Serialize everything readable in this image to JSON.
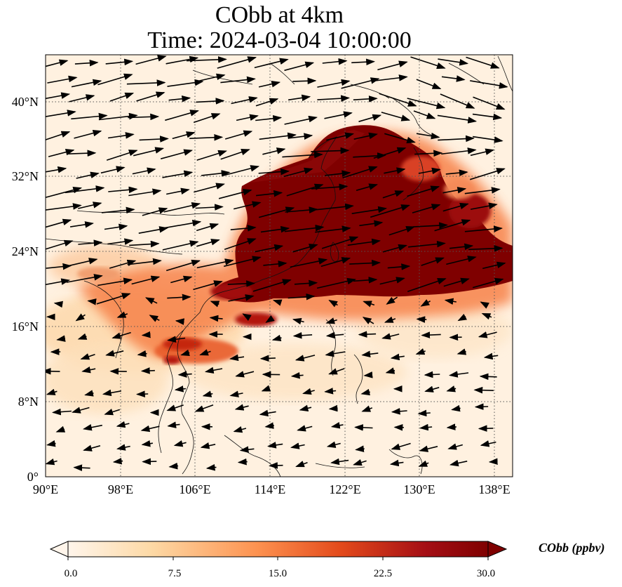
{
  "figure": {
    "title_line1": "CObb at 4km",
    "title_line2": "Time: 2024-03-04 10:00:00"
  },
  "map": {
    "lon_ticks": [
      "90°E",
      "98°E",
      "106°E",
      "114°E",
      "122°E",
      "130°E",
      "138°E"
    ],
    "lat_ticks": [
      "40°N",
      "32°N",
      "24°N",
      "16°N",
      "8°N",
      "0°"
    ],
    "lon_range": [
      90,
      140
    ],
    "lat_range": [
      0,
      45
    ],
    "gridlines": "dotted",
    "field": "CObb",
    "wind_vectors": "westerly flow north of ~18°N, easterly flow south"
  },
  "colorbar": {
    "label": "CObb (ppbv)",
    "tick_labels": [
      "0.0",
      "7.5",
      "15.0",
      "22.5",
      "30.0"
    ],
    "min": 0,
    "max": 30,
    "extend": "both",
    "colormap": [
      "#fff5eb",
      "#fdd9a5",
      "#fd9250",
      "#e34a1b",
      "#a50f15",
      "#7f0000"
    ]
  }
}
